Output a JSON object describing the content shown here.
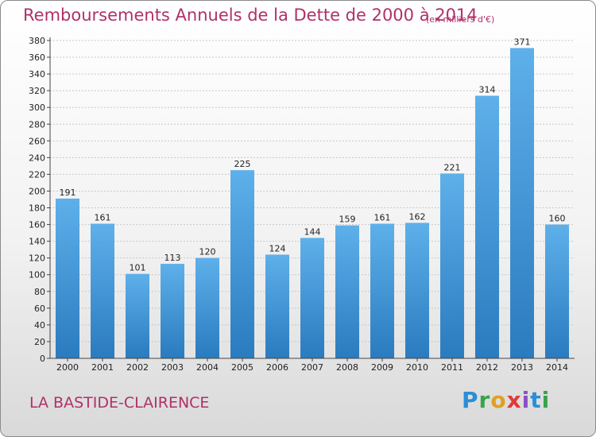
{
  "header": {
    "title": "Remboursements Annuels de la Dette de 2000 à 2014",
    "subtitle": "(en milliers d'€)"
  },
  "footer": {
    "place": "LA BASTIDE-CLAIRENCE",
    "logo": "Proxiti"
  },
  "colors": {
    "bar_top": "#5eb0ea",
    "bar_bottom": "#2a7bbf",
    "grid": "#c8c8c8",
    "accent": "#b0306a"
  },
  "chart_data": {
    "type": "bar",
    "title": "Remboursements Annuels de la Dette de 2000 à 2014",
    "subtitle": "(en milliers d'€)",
    "categories": [
      "2000",
      "2001",
      "2002",
      "2003",
      "2004",
      "2005",
      "2006",
      "2007",
      "2008",
      "2009",
      "2010",
      "2011",
      "2012",
      "2013",
      "2014"
    ],
    "values": [
      191,
      161,
      101,
      113,
      120,
      225,
      124,
      144,
      159,
      161,
      162,
      221,
      314,
      371,
      160
    ],
    "ylim": [
      0,
      380
    ],
    "ytick_step": 20,
    "grid": true,
    "xlabel": "",
    "ylabel": ""
  }
}
